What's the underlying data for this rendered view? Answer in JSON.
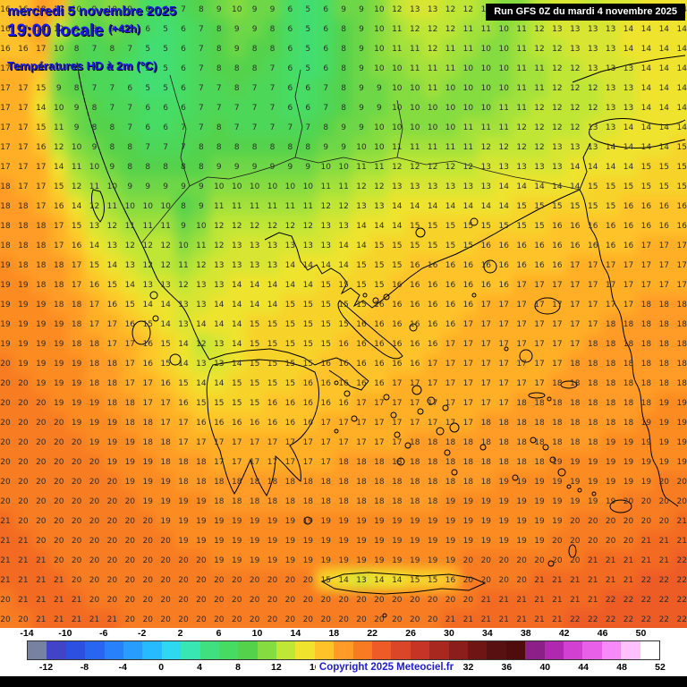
{
  "header": {
    "date": "mercredi 5 novembre 2025",
    "time": "19:00 locale",
    "time_offset": "(+42h)",
    "parameter": "Températures HD à 2m (°C)",
    "run_info": "Run GFS 0Z du mardi 4 novembre 2025"
  },
  "footer": {
    "copyright": "Copyright 2025 Meteociel.fr"
  },
  "colors": {
    "header_text": "#1A1AF0",
    "run_box_bg": "#000000",
    "run_box_text": "#FFFFFF",
    "copyright_text": "#2020D0",
    "value_text": "#2E2E2E",
    "coastline": "#000000",
    "scale_area_bg": "#FFFFFF",
    "bottom_bar": "#000000"
  },
  "scale": {
    "unit": "°C",
    "min": -14,
    "max": 52,
    "step_per_cell": 2,
    "top_labels": [
      "-14",
      "-10",
      "-6",
      "-2",
      "2",
      "6",
      "10",
      "14",
      "18",
      "22",
      "26",
      "30",
      "34",
      "38",
      "42",
      "46",
      "50"
    ],
    "bottom_labels": [
      "-12",
      "-8",
      "-4",
      "0",
      "4",
      "8",
      "12",
      "16",
      "20",
      "24",
      "28",
      "32",
      "36",
      "40",
      "44",
      "48",
      "52"
    ],
    "cells": [
      {
        "t": -14,
        "color": "#7782A0"
      },
      {
        "t": -12,
        "color": "#4343C8"
      },
      {
        "t": -10,
        "color": "#2D50E1"
      },
      {
        "t": -8,
        "color": "#2866F0"
      },
      {
        "t": -6,
        "color": "#2880FA"
      },
      {
        "t": -4,
        "color": "#289CFF"
      },
      {
        "t": -2,
        "color": "#28BAFF"
      },
      {
        "t": 0,
        "color": "#2ED8F0"
      },
      {
        "t": 2,
        "color": "#38E6B4"
      },
      {
        "t": 4,
        "color": "#40E080"
      },
      {
        "t": 6,
        "color": "#46DC64"
      },
      {
        "t": 8,
        "color": "#55D24B"
      },
      {
        "t": 10,
        "color": "#85DC40"
      },
      {
        "t": 12,
        "color": "#C0E636"
      },
      {
        "t": 14,
        "color": "#EFE32D"
      },
      {
        "t": 16,
        "color": "#FFC32A"
      },
      {
        "t": 18,
        "color": "#FF9B26"
      },
      {
        "t": 20,
        "color": "#F87B22"
      },
      {
        "t": 22,
        "color": "#EE5B26"
      },
      {
        "t": 24,
        "color": "#DC4628"
      },
      {
        "t": 26,
        "color": "#C63426"
      },
      {
        "t": 28,
        "color": "#A82820"
      },
      {
        "t": 30,
        "color": "#8B1E1A"
      },
      {
        "t": 32,
        "color": "#6F1614"
      },
      {
        "t": 34,
        "color": "#581010"
      },
      {
        "t": 36,
        "color": "#500C0C"
      },
      {
        "t": 38,
        "color": "#8C2088"
      },
      {
        "t": 40,
        "color": "#B028B0"
      },
      {
        "t": 42,
        "color": "#D240D2"
      },
      {
        "t": 44,
        "color": "#E860E8"
      },
      {
        "t": 46,
        "color": "#F88AF8"
      },
      {
        "t": 48,
        "color": "#FFC0FC"
      },
      {
        "t": 50,
        "color": "#FFFFFF"
      }
    ]
  },
  "map": {
    "grid": {
      "cols": 39,
      "rows": 32,
      "unit": "°C",
      "values": [
        "16 16 18 17 10 9 10 9 6 6 7 8 9 10 9 9 6 5 6 9 9 10 12 13 13 12 12 11 10 10 12 13 13 12 13 13 14 14 14",
        "16 17 18 12 9 8 9 8 6 5 6 7 8 9 9 8 6 5 6 8 9 10 11 12 12 12 11 11 10 11 12 13 13 13 13 14 14 14 14",
        "16 16 17 10 8 7 8 7 5 5 6 7 8 9 8 8 6 5 6 8 9 10 11 11 12 11 11 10 10 11 12 12 13 13 13 14 14 14 14",
        "17 17 16 9 8 7 7 6 5 5 6 7 8 8 8 7 6 5 6 8 9 10 10 11 11 11 10 10 10 11 11 12 12 13 13 13 14 14 14",
        "17 17 15 9 8 7 7 6 5 5 6 7 7 8 7 7 6 6 7 8 9 9 10 10 11 10 10 10 10 11 11 12 12 12 13 13 14 14 14",
        "17 17 14 10 9 8 7 7 6 6 6 7 7 7 7 7 6 6 7 8 9 9 10 10 10 10 10 10 11 11 12 12 12 12 13 13 14 14 14",
        "17 17 15 11 9 8 8 7 6 6 7 7 8 7 7 7 7 7 8 9 9 10 10 10 10 10 11 11 11 12 12 12 12 13 13 14 14 14 14",
        "17 17 16 12 10 9 8 8 7 7 7 8 8 8 8 8 8 8 9 9 10 10 11 11 11 11 11 12 12 12 12 13 13 13 14 14 14 14 15",
        "17 17 17 14 11 10 9 8 8 8 8 8 9 9 9 9 9 9 10 10 11 11 12 12 12 12 12 13 13 13 13 13 14 14 14 14 15 15 15",
        "18 17 17 15 12 11 10 9 9 9 9 9 10 10 10 10 10 10 11 11 12 12 13 13 13 13 13 13 14 14 14 14 14 15 15 15 15 15 15",
        "18 18 17 16 14 12 11 10 10 10 8 9 11 11 11 11 11 11 12 12 13 13 14 14 14 14 14 14 14 15 15 15 15 15 15 16 16 16 16",
        "18 18 18 17 15 13 12 11 11 11 9 10 12 12 12 12 12 12 13 13 14 14 14 15 15 15 15 15 15 15 15 16 16 16 16 16 16 16 16",
        "18 18 18 17 16 14 13 12 12 12 10 11 12 13 13 13 13 13 13 14 14 15 15 15 15 15 15 16 16 16 16 16 16 16 16 16 17 17 17",
        "19 18 18 18 17 15 14 13 12 12 11 12 13 13 13 13 14 14 14 14 15 15 15 16 16 16 16 16 16 16 16 16 17 17 17 17 17 17 17",
        "19 19 18 18 17 16 15 14 13 13 12 13 13 14 14 14 14 14 15 15 15 15 16 16 16 16 16 16 16 17 17 17 17 17 17 17 17 17 17",
        "19 19 19 18 18 17 16 15 14 14 13 13 14 14 14 14 15 15 15 15 15 16 16 16 16 16 16 17 17 17 17 17 17 17 17 17 18 18 18",
        "19 19 19 19 18 17 17 16 15 14 13 14 14 14 15 15 15 15 15 15 16 16 16 16 16 16 17 17 17 17 17 17 17 17 18 18 18 18 18",
        "19 19 19 19 18 18 17 17 16 15 14 12 13 14 15 15 15 15 15 16 16 16 16 16 16 17 17 17 17 17 17 17 17 18 18 18 18 18 18",
        "20 19 19 19 19 18 18 17 16 15 14 13 13 14 15 15 15 15 16 16 16 16 16 16 17 17 17 17 17 17 17 17 18 18 18 18 18 18 18",
        "20 20 19 19 19 18 18 17 17 16 15 14 14 15 15 15 15 16 16 16 16 16 17 17 17 17 17 17 17 17 17 18 18 18 18 18 18 18 18",
        "20 20 20 19 19 19 18 18 17 17 16 15 15 15 15 16 16 16 16 16 17 17 17 17 17 17 17 17 17 18 18 18 18 18 18 18 18 19 19",
        "20 20 20 20 19 19 19 18 18 17 17 16 16 16 16 16 16 16 17 17 17 17 17 17 17 17 17 18 18 18 18 18 18 18 18 18 19 19 19",
        "20 20 20 20 20 19 19 19 18 18 17 17 17 17 17 17 17 17 17 17 17 17 17 18 18 18 18 18 18 18 18 18 18 18 19 19 19 19 19",
        "20 20 20 20 20 20 19 19 19 18 18 18 17 17 17 17 17 17 17 18 18 18 18 18 18 18 18 18 18 18 18 19 19 19 19 19 19 19 19",
        "20 20 20 20 20 20 20 19 19 19 18 18 18 18 18 18 18 18 18 18 18 18 18 18 18 18 18 18 19 19 19 19 19 19 19 19 19 20 20",
        "20 20 20 20 20 20 20 20 19 19 19 19 18 18 18 18 18 18 18 18 18 18 18 18 18 19 19 19 19 19 19 19 19 19 19 20 20 20 20",
        "21 20 20 20 20 20 20 20 20 19 19 19 19 19 19 19 19 19 19 19 19 19 19 19 19 19 19 19 19 19 19 19 20 20 20 20 20 20 21",
        "21 21 20 20 20 20 20 20 20 20 19 19 19 19 19 19 19 19 19 19 19 19 19 19 19 19 19 19 19 19 19 20 20 20 20 20 21 21 21",
        "21 21 21 20 20 20 20 20 20 20 20 20 19 19 19 19 19 19 19 19 19 19 19 19 19 19 20 20 20 20 20 20 20 21 21 21 21 21 22",
        "21 21 21 21 20 20 20 20 20 20 20 20 20 20 20 20 20 20 15 14 13 14 14 15 15 16 20 20 20 20 21 21 21 21 21 21 22 22 22",
        "20 21 21 21 21 20 20 20 20 20 20 20 20 20 20 20 20 20 20 20 20 20 20 20 20 20 20 21 21 21 21 21 21 21 22 22 22 22 22",
        "20 20 21 21 21 21 21 20 20 20 20 20 20 20 20 20 20 20 20 20 20 20 20 20 20 21 21 21 21 21 21 21 22 22 22 22 22 22 22"
      ]
    }
  }
}
